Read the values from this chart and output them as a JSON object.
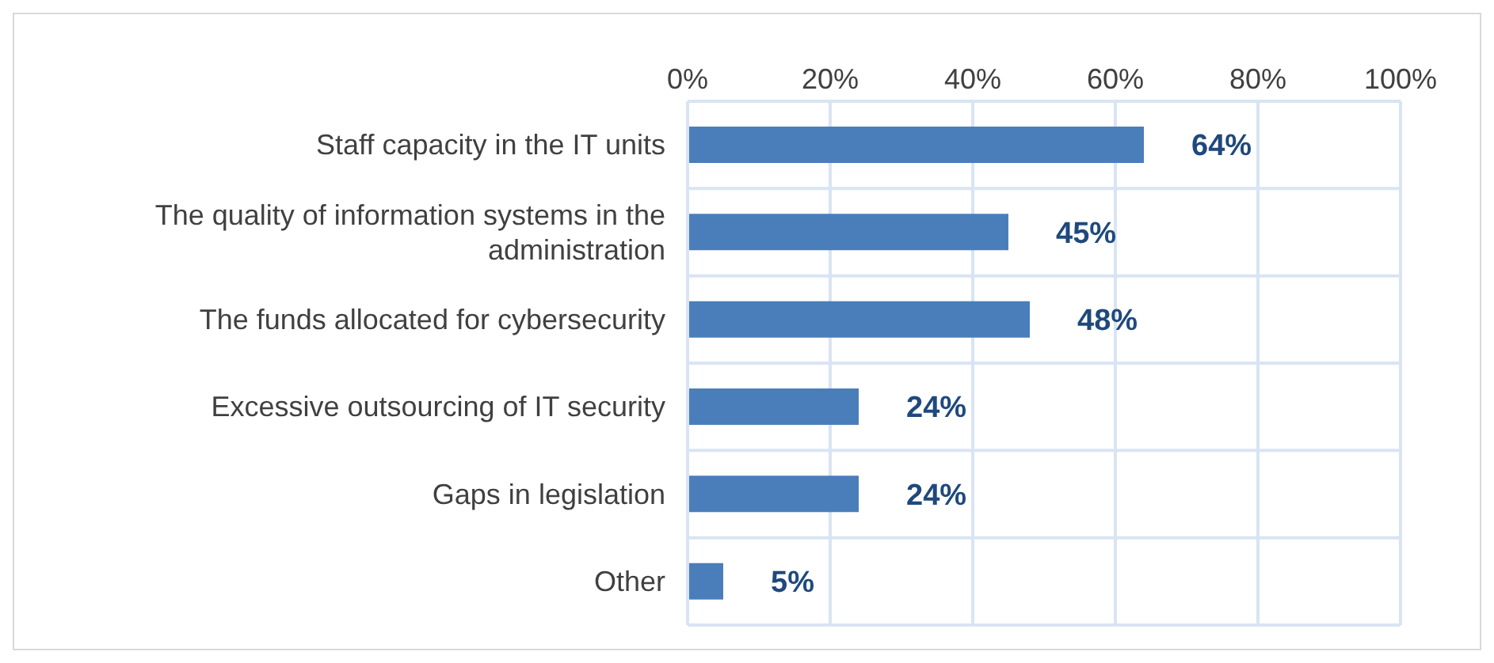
{
  "chart_data": {
    "type": "bar",
    "orientation": "horizontal",
    "categories": [
      "Staff capacity in the IT units",
      "The quality of information systems in the administration",
      "The funds allocated for cybersecurity",
      "Excessive outsourcing of IT security",
      "Gaps in legislation",
      "Other"
    ],
    "values": [
      64,
      45,
      48,
      24,
      24,
      5
    ],
    "value_labels": [
      "64%",
      "45%",
      "48%",
      "24%",
      "24%",
      "5%"
    ],
    "color": "#4a7ebb",
    "xlim": [
      0,
      100
    ],
    "xticks": [
      {
        "value": 0,
        "label": "0%"
      },
      {
        "value": 20,
        "label": "20%"
      },
      {
        "value": 40,
        "label": "40%"
      },
      {
        "value": 60,
        "label": "60%"
      },
      {
        "value": 80,
        "label": "80%"
      },
      {
        "value": 100,
        "label": "100%"
      }
    ],
    "grid": true
  }
}
